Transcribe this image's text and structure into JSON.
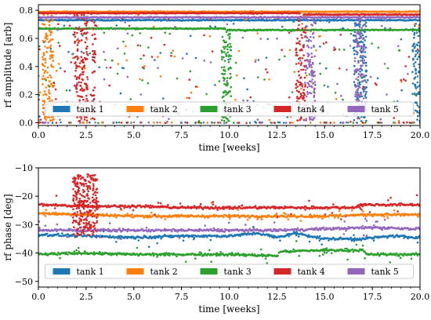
{
  "chart_data": [
    {
      "type": "scatter",
      "xlabel": "time [weeks]",
      "ylabel": "rf amplitude [arb]",
      "xlim": [
        0,
        20
      ],
      "ylim": [
        -0.02,
        0.84
      ],
      "xticks": [
        0.0,
        2.5,
        5.0,
        7.5,
        10.0,
        12.5,
        15.0,
        17.5,
        20.0
      ],
      "xtick_labels": [
        "0.0",
        "2.5",
        "5.0",
        "7.5",
        "10.0",
        "12.5",
        "15.0",
        "17.5",
        "20.0"
      ],
      "yticks": [
        0.0,
        0.2,
        0.4,
        0.6,
        0.8
      ],
      "ytick_labels": [
        "0.0",
        "0.2",
        "0.4",
        "0.6",
        "0.8"
      ],
      "grid": false,
      "legend_placement": "bottom",
      "series": [
        {
          "name": "tank 1",
          "color": "#1f77b4",
          "segments": [
            {
              "x": [
                0,
                20
              ],
              "y": [
                0.73,
                0.73
              ]
            }
          ],
          "activity": [
            [
              16.5,
              17.2
            ],
            [
              19.6,
              20.0
            ]
          ]
        },
        {
          "name": "tank 2",
          "color": "#ff7f0e",
          "segments": [
            {
              "x": [
                0,
                20
              ],
              "y": [
                0.79,
                0.79
              ]
            }
          ],
          "activity": [
            [
              0.2,
              0.8
            ]
          ]
        },
        {
          "name": "tank 3",
          "color": "#2ca02c",
          "segments": [
            {
              "x": [
                0,
                9.8
              ],
              "y": [
                0.67,
                0.67
              ]
            },
            {
              "x": [
                9.9,
                20
              ],
              "y": [
                0.66,
                0.66
              ]
            }
          ],
          "activity": [
            [
              9.6,
              10.1
            ]
          ]
        },
        {
          "name": "tank 4",
          "color": "#d62728",
          "segments": [
            {
              "x": [
                0,
                13.7
              ],
              "y": [
                0.78,
                0.78
              ]
            },
            {
              "x": [
                13.9,
                20
              ],
              "y": [
                0.77,
                0.77
              ]
            }
          ],
          "activity": [
            [
              1.9,
              2.6
            ],
            [
              2.8,
              3.0
            ],
            [
              13.5,
              14.0
            ]
          ]
        },
        {
          "name": "tank 5",
          "color": "#9467bd",
          "segments": [
            {
              "x": [
                0,
                20
              ],
              "y": [
                0.75,
                0.75
              ]
            }
          ],
          "activity": [
            [
              14.0,
              14.5
            ],
            [
              16.6,
              17.1
            ]
          ]
        }
      ]
    },
    {
      "type": "scatter",
      "xlabel": "time [weeks]",
      "ylabel": "rf phase [deg]",
      "xlim": [
        0,
        20
      ],
      "ylim": [
        -52,
        -10
      ],
      "xticks": [
        0.0,
        2.5,
        5.0,
        7.5,
        10.0,
        12.5,
        15.0,
        17.5,
        20.0
      ],
      "xtick_labels": [
        "0.0",
        "2.5",
        "5.0",
        "7.5",
        "10.0",
        "12.5",
        "15.0",
        "17.5",
        "20.0"
      ],
      "yticks": [
        -50,
        -40,
        -30,
        -20,
        -10
      ],
      "ytick_labels": [
        "−50",
        "−40",
        "−30",
        "−20",
        "−10"
      ],
      "grid": false,
      "legend_placement": "bottom",
      "series": [
        {
          "name": "tank 1",
          "color": "#1f77b4",
          "points": [
            [
              0,
              -33.5
            ],
            [
              2.5,
              -34
            ],
            [
              5,
              -34.5
            ],
            [
              7.5,
              -34
            ],
            [
              10,
              -34
            ],
            [
              11.5,
              -33
            ],
            [
              12.5,
              -34.5
            ],
            [
              13.5,
              -33
            ],
            [
              15,
              -35
            ],
            [
              17,
              -35
            ],
            [
              18.5,
              -34
            ],
            [
              20,
              -34.5
            ]
          ]
        },
        {
          "name": "tank 2",
          "color": "#ff7f0e",
          "points": [
            [
              0,
              -26
            ],
            [
              2.5,
              -26.5
            ],
            [
              5,
              -27
            ],
            [
              7.5,
              -27
            ],
            [
              10,
              -27
            ],
            [
              12.5,
              -27
            ],
            [
              15,
              -27
            ],
            [
              17.5,
              -26.5
            ],
            [
              20,
              -26.5
            ]
          ]
        },
        {
          "name": "tank 3",
          "color": "#2ca02c",
          "points": [
            [
              0,
              -40.5
            ],
            [
              2.5,
              -40
            ],
            [
              5,
              -40.5
            ],
            [
              7.5,
              -40.5
            ],
            [
              10,
              -40.5
            ],
            [
              12.5,
              -41
            ],
            [
              12.7,
              -39.5
            ],
            [
              15,
              -39
            ],
            [
              17,
              -39
            ],
            [
              17.2,
              -40.5
            ],
            [
              20,
              -40.5
            ]
          ]
        },
        {
          "name": "tank 4",
          "color": "#d62728",
          "points": [
            [
              0,
              -23
            ],
            [
              2.5,
              -23.5
            ],
            [
              5,
              -23.5
            ],
            [
              7.5,
              -24
            ],
            [
              10,
              -24
            ],
            [
              12.5,
              -24
            ],
            [
              15,
              -24
            ],
            [
              16.5,
              -24
            ],
            [
              17,
              -23
            ],
            [
              20,
              -23
            ]
          ]
        },
        {
          "name": "tank 5",
          "color": "#9467bd",
          "points": [
            [
              0,
              -32
            ],
            [
              2.5,
              -32
            ],
            [
              5,
              -32
            ],
            [
              7.5,
              -32
            ],
            [
              10,
              -32
            ],
            [
              12.5,
              -32
            ],
            [
              15,
              -31.5
            ],
            [
              17.5,
              -31
            ],
            [
              20,
              -31.5
            ]
          ]
        }
      ]
    }
  ]
}
